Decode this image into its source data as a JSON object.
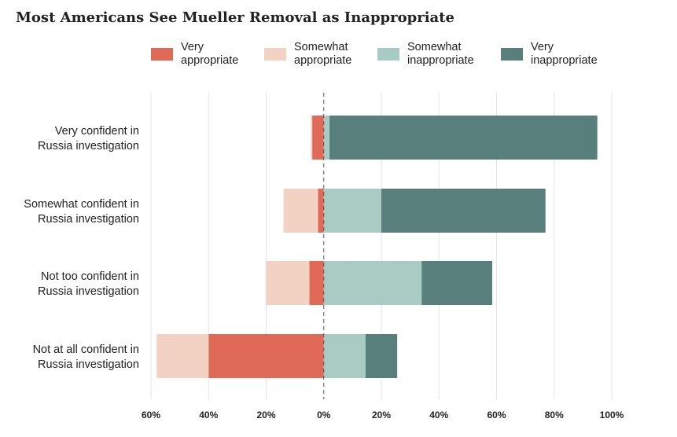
{
  "chart_data": {
    "type": "bar",
    "orientation": "horizontal",
    "stacked": "diverging",
    "title": "Most Americans See Mueller Removal as Inappropriate",
    "categories": [
      [
        "Very confident in",
        "Russia investigation"
      ],
      [
        "Somewhat confident in",
        "Russia investigation"
      ],
      [
        "Not too confident in",
        "Russia investigation"
      ],
      [
        "Not at all confident in",
        "Russia investigation"
      ]
    ],
    "series": [
      {
        "name": "Very appropriate",
        "label_lines": [
          "Very",
          "appropriate"
        ],
        "color": "#e06a58",
        "side": "negative",
        "values": [
          4,
          2,
          5,
          40
        ]
      },
      {
        "name": "Somewhat appropriate",
        "label_lines": [
          "Somewhat",
          "appropriate"
        ],
        "color": "#f3d2c3",
        "side": "negative",
        "values": [
          0.5,
          12,
          15,
          18
        ]
      },
      {
        "name": "Somewhat inappropriate",
        "label_lines": [
          "Somewhat",
          "inappropriate"
        ],
        "color": "#a8cbc4",
        "side": "positive",
        "values": [
          2,
          20,
          34,
          14.5
        ]
      },
      {
        "name": "Very inappropriate",
        "label_lines": [
          "Very",
          "inappropriate"
        ],
        "color": "#587f7b",
        "side": "positive",
        "values": [
          93,
          57,
          24.5,
          11
        ]
      }
    ],
    "xlim": [
      -60,
      100
    ],
    "xticks": [
      -60,
      -40,
      -20,
      0,
      20,
      40,
      60,
      80,
      100
    ],
    "xtick_labels": [
      "60%",
      "40%",
      "20%",
      "0%",
      "20%",
      "40%",
      "60%",
      "80%",
      "100%"
    ],
    "grid": true,
    "zero_line": "dashed",
    "legend_position": "top"
  }
}
